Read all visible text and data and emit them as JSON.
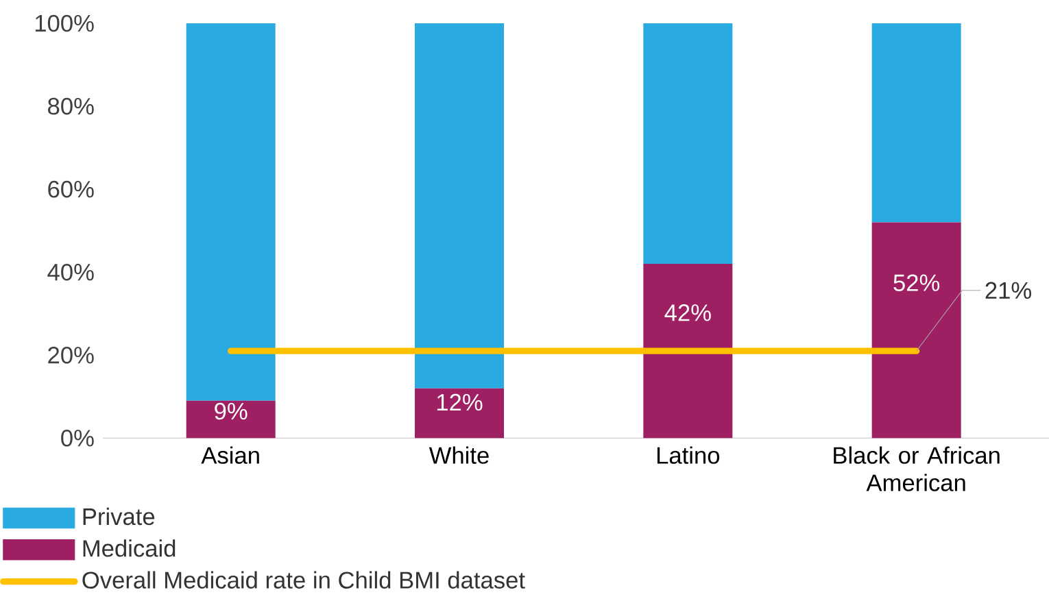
{
  "chart_data": {
    "type": "bar",
    "stacked": true,
    "categories": [
      "Asian",
      "White",
      "Latino",
      "Black or African American"
    ],
    "series": [
      {
        "name": "Medicaid",
        "color": "#9e1f62",
        "values": [
          9,
          12,
          42,
          52
        ],
        "value_labels": [
          "9%",
          "12%",
          "42%",
          "52%"
        ]
      },
      {
        "name": "Private",
        "color": "#29abe2",
        "values": [
          91,
          88,
          58,
          48
        ]
      },
      {
        "name": "Overall Medicaid rate in Child BMI dataset",
        "type": "line",
        "color": "#ffc000",
        "values": [
          21,
          21,
          21,
          21
        ]
      }
    ],
    "ylim": [
      0,
      100
    ],
    "yticks": [
      {
        "value": 0,
        "label": "0%"
      },
      {
        "value": 20,
        "label": "20%"
      },
      {
        "value": 40,
        "label": "40%"
      },
      {
        "value": 60,
        "label": "60%"
      },
      {
        "value": 80,
        "label": "80%"
      },
      {
        "value": 100,
        "label": "100%"
      }
    ],
    "annotations": [
      {
        "text": "21%",
        "x": "Black or African American",
        "y": 21
      }
    ],
    "legend": "bottom left"
  }
}
